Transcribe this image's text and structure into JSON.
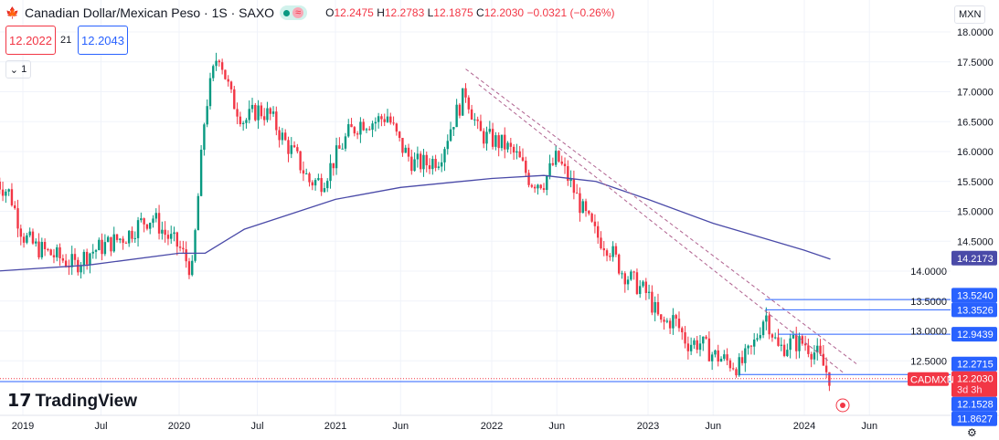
{
  "header": {
    "title": "Canadian Dollar/Mexican Peso · 1S · SAXO",
    "open_label": "O",
    "open": "12.2475",
    "high_label": "H",
    "high": "12.2783",
    "low_label": "L",
    "low": "12.1875",
    "close_label": "C",
    "close": "12.2030",
    "change": "−0.0321 (−0.26%)",
    "market_status_icon": "green-dot",
    "indicator_icon": "approx-icon"
  },
  "trade": {
    "sell": "12.2022",
    "spread": "21",
    "buy": "12.2043"
  },
  "collapse": {
    "label": "1"
  },
  "currency": "MXN",
  "logo": "TradingView",
  "colors": {
    "up": "#089981",
    "down": "#f23645",
    "ma": "#4a4aa8",
    "hline": "#2962ff",
    "channel": "#b0628f"
  },
  "chart_data": {
    "type": "candlestick",
    "interval": "1W",
    "ylim": [
      11.86,
      18.2
    ],
    "y_ticks": [
      "18.0000",
      "17.5000",
      "17.0000",
      "16.5000",
      "16.0000",
      "15.5000",
      "15.0000",
      "14.5000",
      "14.0000",
      "13.5000",
      "13.0000",
      "12.5000"
    ],
    "x_ticks": [
      {
        "t": "2019-01",
        "label": "2019"
      },
      {
        "t": "2019-07",
        "label": "Jul"
      },
      {
        "t": "2020-01",
        "label": "2020"
      },
      {
        "t": "2020-07",
        "label": "Jul"
      },
      {
        "t": "2021-01",
        "label": "2021"
      },
      {
        "t": "2021-06",
        "label": "Jun"
      },
      {
        "t": "2022-01",
        "label": "2022"
      },
      {
        "t": "2022-06",
        "label": "Jun"
      },
      {
        "t": "2023-01",
        "label": "2023"
      },
      {
        "t": "2023-06",
        "label": "Jun"
      },
      {
        "t": "2024-01",
        "label": "2024"
      },
      {
        "t": "2024-06",
        "label": "Jun"
      }
    ],
    "monthly_closes": [
      [
        "2018-11",
        15.5
      ],
      [
        "2018-12",
        15.3
      ],
      [
        "2019-01",
        14.6
      ],
      [
        "2019-02",
        14.4
      ],
      [
        "2019-03",
        14.3
      ],
      [
        "2019-04",
        14.2
      ],
      [
        "2019-05",
        14.1
      ],
      [
        "2019-06",
        14.3
      ],
      [
        "2019-07",
        14.4
      ],
      [
        "2019-08",
        14.5
      ],
      [
        "2019-09",
        14.6
      ],
      [
        "2019-10",
        14.8
      ],
      [
        "2019-11",
        14.9
      ],
      [
        "2019-12",
        14.6
      ],
      [
        "2020-01",
        14.4
      ],
      [
        "2020-02",
        14.0
      ],
      [
        "2020-03",
        16.7
      ],
      [
        "2020-04",
        17.7
      ],
      [
        "2020-05",
        16.9
      ],
      [
        "2020-06",
        16.5
      ],
      [
        "2020-07",
        16.7
      ],
      [
        "2020-08",
        16.6
      ],
      [
        "2020-09",
        16.2
      ],
      [
        "2020-10",
        15.9
      ],
      [
        "2020-11",
        15.5
      ],
      [
        "2020-12",
        15.5
      ],
      [
        "2021-01",
        15.9
      ],
      [
        "2021-02",
        16.3
      ],
      [
        "2021-03",
        16.5
      ],
      [
        "2021-04",
        16.5
      ],
      [
        "2021-05",
        16.6
      ],
      [
        "2021-06",
        16.1
      ],
      [
        "2021-07",
        15.8
      ],
      [
        "2021-08",
        15.8
      ],
      [
        "2021-09",
        15.9
      ],
      [
        "2021-10",
        16.5
      ],
      [
        "2021-11",
        17.0
      ],
      [
        "2021-12",
        16.3
      ],
      [
        "2022-01",
        16.2
      ],
      [
        "2022-02",
        16.1
      ],
      [
        "2022-03",
        15.9
      ],
      [
        "2022-04",
        15.5
      ],
      [
        "2022-05",
        15.5
      ],
      [
        "2022-06",
        15.9
      ],
      [
        "2022-07",
        15.5
      ],
      [
        "2022-08",
        15.0
      ],
      [
        "2022-09",
        14.6
      ],
      [
        "2022-10",
        14.4
      ],
      [
        "2022-11",
        14.0
      ],
      [
        "2022-12",
        13.8
      ],
      [
        "2023-01",
        13.6
      ],
      [
        "2023-02",
        13.1
      ],
      [
        "2023-03",
        13.2
      ],
      [
        "2023-04",
        12.8
      ],
      [
        "2023-05",
        12.8
      ],
      [
        "2023-06",
        12.6
      ],
      [
        "2023-07",
        12.5
      ],
      [
        "2023-08",
        12.4
      ],
      [
        "2023-09",
        12.7
      ],
      [
        "2023-10",
        13.3
      ],
      [
        "2023-11",
        12.7
      ],
      [
        "2023-12",
        12.8
      ],
      [
        "2024-01",
        12.8
      ],
      [
        "2024-02",
        12.6
      ],
      [
        "2024-03",
        12.2
      ]
    ],
    "moving_average": [
      [
        "2018-11",
        14.0
      ],
      [
        "2019-06",
        14.1
      ],
      [
        "2020-01",
        14.3
      ],
      [
        "2020-03",
        14.3
      ],
      [
        "2020-06",
        14.7
      ],
      [
        "2021-01",
        15.2
      ],
      [
        "2021-06",
        15.4
      ],
      [
        "2022-01",
        15.55
      ],
      [
        "2022-05",
        15.6
      ],
      [
        "2022-09",
        15.5
      ],
      [
        "2023-01",
        15.2
      ],
      [
        "2023-06",
        14.8
      ],
      [
        "2024-01",
        14.35
      ],
      [
        "2024-03",
        14.2
      ]
    ],
    "ma_label": "14.2173",
    "horizontal_levels": [
      {
        "price": 13.524,
        "label": "13.5240",
        "from": "2023-10"
      },
      {
        "price": 13.3526,
        "label": "13.3526",
        "from": "2023-10"
      },
      {
        "price": 12.9439,
        "label": "12.9439",
        "from": "2023-11"
      },
      {
        "price": 12.2715,
        "label": "12.2715",
        "from": "2023-08"
      },
      {
        "price": 12.1528,
        "label": "12.1528",
        "from": "2018-11"
      }
    ],
    "channel": [
      [
        [
          "2021-11",
          17.38
        ],
        [
          "2024-05",
          12.45
        ]
      ],
      [
        [
          "2021-12",
          17.12
        ],
        [
          "2024-04",
          12.3
        ]
      ]
    ],
    "last_price": {
      "symbol": "CADMXN",
      "price": 12.203,
      "label": "12.2030",
      "countdown": "3d 3h"
    },
    "hidden_label": "11.8627"
  }
}
